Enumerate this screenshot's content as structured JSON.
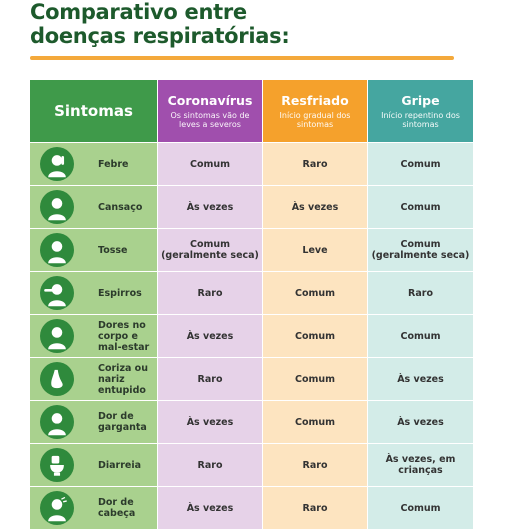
{
  "title_line1": "Comparativo entre",
  "title_line2": "doenças respiratórias:",
  "headers": {
    "symptoms": "Sintomas",
    "coronavirus": {
      "title": "Coronavírus",
      "sub": "Os sintomas vão de leves a severos"
    },
    "cold": {
      "title": "Resfriado",
      "sub": "Início gradual dos sintomas"
    },
    "flu": {
      "title": "Gripe",
      "sub": "Início repentino dos sintomas"
    }
  },
  "rows": [
    {
      "symptom": "Febre",
      "icon": "fever-icon",
      "coronavirus": "Comum",
      "cold": "Raro",
      "flu": "Comum"
    },
    {
      "symptom": "Cansaço",
      "icon": "fatigue-icon",
      "coronavirus": "Às vezes",
      "cold": "Às vezes",
      "flu": "Comum"
    },
    {
      "symptom": "Tosse",
      "icon": "cough-icon",
      "coronavirus": "Comum (geralmente seca)",
      "cold": "Leve",
      "flu": "Comum (geralmente seca)"
    },
    {
      "symptom": "Espirros",
      "icon": "sneeze-icon",
      "coronavirus": "Raro",
      "cold": "Comum",
      "flu": "Raro"
    },
    {
      "symptom": "Dores no corpo e mal-estar",
      "icon": "body-ache-icon",
      "coronavirus": "Às vezes",
      "cold": "Comum",
      "flu": "Comum"
    },
    {
      "symptom": "Coriza ou nariz entupido",
      "icon": "nose-icon",
      "coronavirus": "Raro",
      "cold": "Comum",
      "flu": "Às vezes"
    },
    {
      "symptom": "Dor de garganta",
      "icon": "sore-throat-icon",
      "coronavirus": "Às vezes",
      "cold": "Comum",
      "flu": "Às vezes"
    },
    {
      "symptom": "Diarreia",
      "icon": "toilet-icon",
      "coronavirus": "Raro",
      "cold": "Raro",
      "flu": "Às vezes, em crianças"
    },
    {
      "symptom": "Dor de cabeça",
      "icon": "headache-icon",
      "coronavirus": "Às vezes",
      "cold": "Raro",
      "flu": "Comum"
    }
  ],
  "colors": {
    "title": "#1d5a2c",
    "accent_rule": "#f4a93b",
    "symptoms_header": "#3f9a4a",
    "coronavirus_header": "#a04fad",
    "cold_header": "#f5a12c",
    "flu_header": "#45a6a0"
  }
}
